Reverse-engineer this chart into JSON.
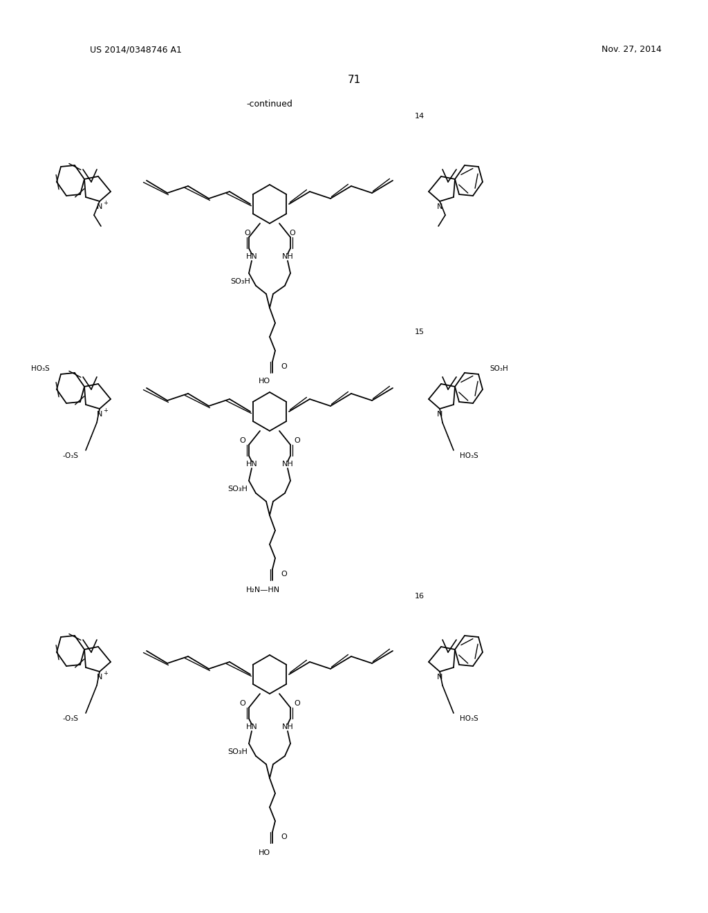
{
  "background_color": "#ffffff",
  "page_number": "71",
  "patent_number": "US 2014/0348746 A1",
  "patent_date": "Nov. 27, 2014",
  "continued_label": "-continued",
  "compound_labels": [
    "14",
    "15",
    "16"
  ],
  "font_color": "#000000",
  "line_color": "#000000",
  "figsize": [
    10.24,
    13.2
  ],
  "dpi": 100
}
